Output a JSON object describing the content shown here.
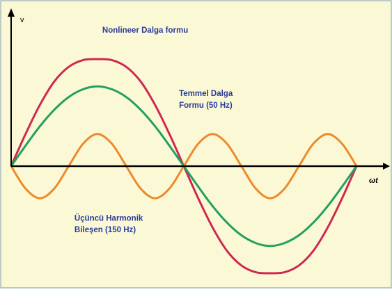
{
  "chart_data": {
    "type": "line",
    "ylabel": "v",
    "xlabel": "ωt",
    "x_range": [
      0,
      360
    ],
    "y_range": [
      -1.25,
      1.25
    ],
    "grid": false,
    "legend": "none",
    "x": [
      0,
      15,
      30,
      45,
      60,
      75,
      90,
      105,
      120,
      135,
      150,
      165,
      180,
      195,
      210,
      225,
      240,
      255,
      270,
      285,
      300,
      315,
      330,
      345,
      360
    ],
    "series": [
      {
        "color": "#cf2850",
        "values": [
          0,
          0.33,
          0.63,
          0.87,
          1.02,
          1.09,
          1.1,
          1.09,
          1.02,
          0.87,
          0.63,
          0.33,
          0,
          -0.33,
          -0.63,
          -0.87,
          -1.02,
          -1.09,
          -1.1,
          -1.09,
          -1.02,
          -0.87,
          -0.63,
          -0.33,
          0
        ]
      },
      {
        "color": "#22a060",
        "values": [
          0,
          0.21,
          0.41,
          0.58,
          0.71,
          0.79,
          0.82,
          0.79,
          0.71,
          0.58,
          0.41,
          0.21,
          0,
          -0.21,
          -0.41,
          -0.58,
          -0.71,
          -0.79,
          -0.82,
          -0.79,
          -0.71,
          -0.58,
          -0.41,
          -0.21,
          0
        ]
      },
      {
        "color": "#ee8a2a",
        "values": [
          0,
          -0.23,
          -0.33,
          -0.23,
          0,
          0.23,
          0.33,
          0.23,
          0,
          -0.23,
          -0.33,
          -0.23,
          0,
          0.23,
          0.33,
          0.23,
          0,
          -0.23,
          -0.33,
          -0.23,
          0,
          0.23,
          0.33,
          0.23,
          0
        ]
      }
    ],
    "annotations": [
      {
        "lines": [
          "Nonlineer Dalga formu"
        ],
        "color": "#2a3c9a",
        "x": 95,
        "y": 1.37
      },
      {
        "lines": [
          "Temmel Dalga",
          "Formu (50 Hz)"
        ],
        "color": "#2a3c9a",
        "x": 175,
        "y": 0.72
      },
      {
        "lines": [
          "Üçüncü Harmonik",
          "Bileşen (150 Hz)"
        ],
        "color": "#2a3c9a",
        "x": 66,
        "y": -0.56
      }
    ],
    "background_color": "#fbf8d6",
    "page_border_color": "#7a9a9a",
    "axis_color": "#000000"
  }
}
